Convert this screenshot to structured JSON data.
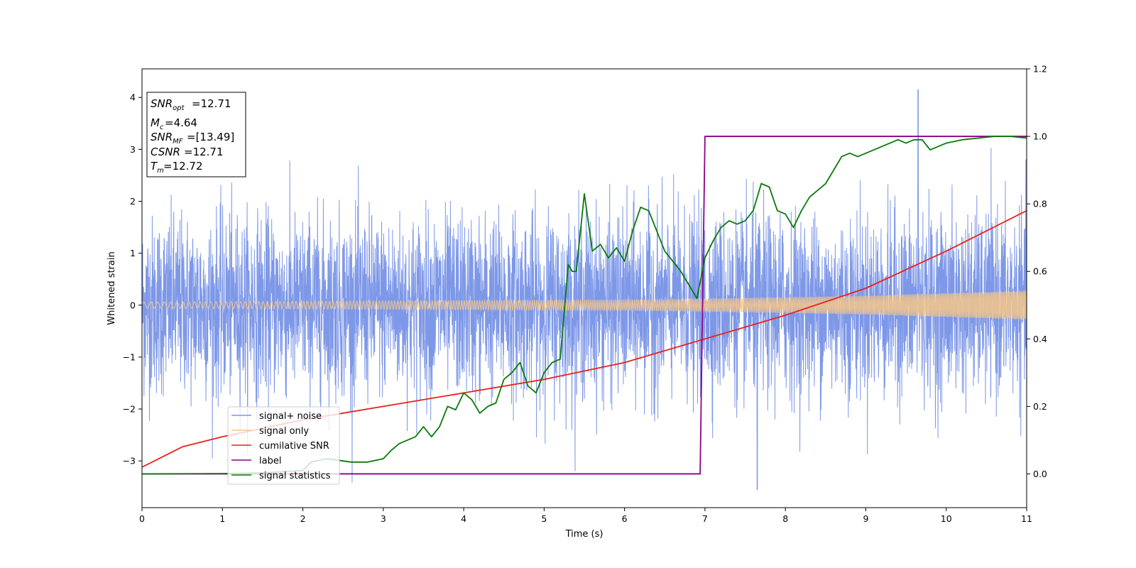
{
  "chart_data": {
    "type": "line",
    "xlabel": "Time (s)",
    "ylabel": "Whitened strain",
    "xlim": [
      0,
      11
    ],
    "ylim": [
      -3.9,
      4.55
    ],
    "y2lim": [
      -0.1,
      1.2
    ],
    "xticks": [
      "0",
      "1",
      "2",
      "3",
      "4",
      "5",
      "6",
      "7",
      "8",
      "9",
      "10",
      "11"
    ],
    "yticks": [
      "−3",
      "−2",
      "−1",
      "0",
      "1",
      "2",
      "3",
      "4"
    ],
    "y2ticks": [
      "0.0",
      "0.2",
      "0.4",
      "0.6",
      "0.8",
      "1.0",
      "1.2"
    ],
    "grid": false,
    "legend_placement": "lower-left",
    "stats_box": {
      "snr_opt": "=12.71",
      "mc": "=4.64",
      "snr_mf": "=[13.49]",
      "csnr": "=12.71",
      "tm": "=12.72"
    },
    "series": [
      {
        "name": "signal+ noise",
        "axis": "left",
        "color": "#7b96e8",
        "envelope": "noise band roughly ±1.4 with spikes to about ±2.5, max 4.15 near 9.65 s, min -3.55 near 7.65 s"
      },
      {
        "name": "signal only",
        "axis": "left",
        "color": "#f5c58a",
        "amplitude": [
          [
            0,
            0.06
          ],
          [
            6,
            0.1
          ],
          [
            8,
            0.15
          ],
          [
            9,
            0.18
          ],
          [
            11,
            0.28
          ]
        ]
      },
      {
        "name": "cumilative SNR",
        "axis": "right",
        "color": "#e8211b",
        "x": [
          0,
          0.5,
          1,
          2,
          3,
          4,
          5,
          6,
          7,
          8,
          9,
          10,
          11
        ],
        "y": [
          0.02,
          0.08,
          0.11,
          0.16,
          0.2,
          0.24,
          0.28,
          0.33,
          0.4,
          0.47,
          0.55,
          0.66,
          0.78
        ]
      },
      {
        "name": "label",
        "axis": "right",
        "color": "#8b008b",
        "x": [
          0,
          6.94,
          7.0,
          11
        ],
        "y": [
          0,
          0,
          1,
          1
        ]
      },
      {
        "name": "signal statistics",
        "axis": "right",
        "color": "#0a7a0a",
        "x": [
          0,
          1,
          1.5,
          2,
          2.1,
          2.3,
          2.45,
          2.6,
          2.8,
          3,
          3.1,
          3.2,
          3.3,
          3.4,
          3.5,
          3.6,
          3.7,
          3.8,
          3.9,
          4,
          4.1,
          4.2,
          4.3,
          4.4,
          4.5,
          4.6,
          4.7,
          4.8,
          4.9,
          5,
          5.1,
          5.2,
          5.3,
          5.35,
          5.4,
          5.5,
          5.6,
          5.7,
          5.8,
          5.9,
          6,
          6.1,
          6.2,
          6.3,
          6.4,
          6.5,
          6.6,
          6.7,
          6.8,
          6.9,
          7,
          7.1,
          7.2,
          7.3,
          7.4,
          7.5,
          7.6,
          7.7,
          7.8,
          7.9,
          8,
          8.1,
          8.2,
          8.3,
          8.4,
          8.5,
          8.6,
          8.7,
          8.8,
          8.9,
          9,
          9.1,
          9.2,
          9.3,
          9.4,
          9.5,
          9.6,
          9.7,
          9.8,
          9.9,
          10,
          10.1,
          10.2,
          10.4,
          10.6,
          10.8,
          11
        ],
        "y": [
          0,
          0.001,
          0.003,
          0.01,
          0.035,
          0.045,
          0.04,
          0.035,
          0.035,
          0.045,
          0.07,
          0.09,
          0.1,
          0.11,
          0.14,
          0.11,
          0.14,
          0.2,
          0.19,
          0.24,
          0.22,
          0.18,
          0.2,
          0.21,
          0.28,
          0.3,
          0.33,
          0.26,
          0.24,
          0.3,
          0.33,
          0.34,
          0.62,
          0.6,
          0.6,
          0.83,
          0.66,
          0.68,
          0.64,
          0.67,
          0.63,
          0.72,
          0.79,
          0.78,
          0.72,
          0.66,
          0.63,
          0.6,
          0.56,
          0.52,
          0.64,
          0.69,
          0.73,
          0.75,
          0.74,
          0.75,
          0.78,
          0.86,
          0.85,
          0.78,
          0.77,
          0.73,
          0.78,
          0.82,
          0.84,
          0.86,
          0.9,
          0.94,
          0.95,
          0.94,
          0.95,
          0.96,
          0.97,
          0.98,
          0.99,
          0.98,
          0.99,
          0.99,
          0.96,
          0.97,
          0.98,
          0.985,
          0.99,
          0.995,
          1.0,
          1.0,
          0.995
        ]
      }
    ]
  }
}
